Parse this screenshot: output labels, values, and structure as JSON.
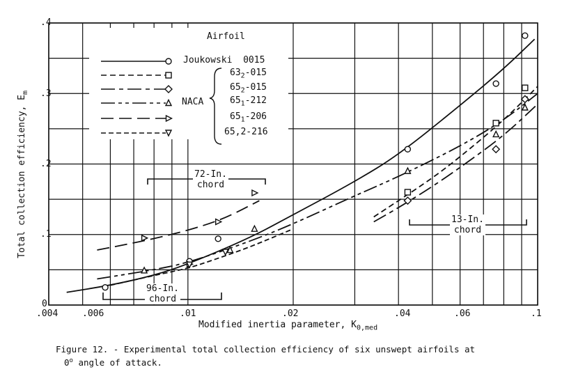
{
  "chart_data": {
    "type": "line",
    "title": "",
    "xlabel": "Modified inertia parameter, K0,med",
    "ylabel": "Total collection efficiency, Em",
    "x_scale": "log",
    "xlim": [
      0.004,
      0.1
    ],
    "ylim": [
      0,
      0.4
    ],
    "x_ticks": [
      ".004",
      ".006",
      ".01",
      ".02",
      ".04",
      ".06",
      ".1"
    ],
    "y_ticks": [
      "0",
      ".1",
      ".2",
      ".3",
      ".4"
    ],
    "grid": true,
    "legend": {
      "title": "Airfoil",
      "position": "upper-left",
      "group_label": "NACA",
      "entries": [
        {
          "name": "Joukowski 0015",
          "marker": "circle",
          "line": "solid"
        },
        {
          "name": "63₂-015",
          "marker": "square",
          "line": "dashed"
        },
        {
          "name": "65₂-015",
          "marker": "diamond",
          "line": "long-short-dash"
        },
        {
          "name": "65₁-212",
          "marker": "triangle-up",
          "line": "long-short-short-dash"
        },
        {
          "name": "65₁-206",
          "marker": "triangle-right",
          "line": "long-dash"
        },
        {
          "name": "65,2-216",
          "marker": "triangle-down",
          "line": "short-dash"
        }
      ]
    },
    "annotations": [
      "72-In. chord",
      "96-In. chord",
      "13-In. chord"
    ],
    "series": [
      {
        "name": "Joukowski 0015",
        "marker": "circle",
        "points": [
          [
            0.0058,
            0.025
          ],
          [
            0.0101,
            0.062
          ],
          [
            0.0122,
            0.094
          ],
          [
            0.0425,
            0.221
          ],
          [
            0.076,
            0.314
          ],
          [
            0.092,
            0.382
          ]
        ],
        "curve": [
          [
            0.0045,
            0.018
          ],
          [
            0.006,
            0.028
          ],
          [
            0.008,
            0.042
          ],
          [
            0.01,
            0.058
          ],
          [
            0.015,
            0.095
          ],
          [
            0.02,
            0.128
          ],
          [
            0.03,
            0.175
          ],
          [
            0.04,
            0.213
          ],
          [
            0.06,
            0.283
          ],
          [
            0.08,
            0.335
          ],
          [
            0.098,
            0.377
          ]
        ]
      },
      {
        "name": "63₂-015",
        "marker": "square",
        "points": [
          [
            0.0425,
            0.16
          ],
          [
            0.076,
            0.258
          ],
          [
            0.092,
            0.308
          ]
        ],
        "curve": [
          [
            0.034,
            0.125
          ],
          [
            0.04,
            0.148
          ],
          [
            0.05,
            0.18
          ],
          [
            0.06,
            0.21
          ],
          [
            0.08,
            0.262
          ],
          [
            0.1,
            0.31
          ]
        ]
      },
      {
        "name": "65₂-015",
        "marker": "diamond",
        "points": [
          [
            0.0425,
            0.148
          ],
          [
            0.076,
            0.221
          ],
          [
            0.092,
            0.292
          ]
        ],
        "curve": [
          [
            0.034,
            0.118
          ],
          [
            0.04,
            0.138
          ],
          [
            0.05,
            0.168
          ],
          [
            0.06,
            0.195
          ],
          [
            0.08,
            0.24
          ],
          [
            0.1,
            0.285
          ]
        ]
      },
      {
        "name": "65₁-212",
        "marker": "triangle-up",
        "points": [
          [
            0.0075,
            0.049
          ],
          [
            0.0132,
            0.078
          ],
          [
            0.0155,
            0.108
          ],
          [
            0.0425,
            0.19
          ],
          [
            0.076,
            0.242
          ],
          [
            0.092,
            0.28
          ]
        ],
        "curve": [
          [
            0.0055,
            0.037
          ],
          [
            0.008,
            0.05
          ],
          [
            0.01,
            0.06
          ],
          [
            0.015,
            0.09
          ],
          [
            0.02,
            0.115
          ],
          [
            0.03,
            0.155
          ],
          [
            0.04,
            0.182
          ],
          [
            0.06,
            0.225
          ],
          [
            0.08,
            0.262
          ],
          [
            0.1,
            0.3
          ]
        ]
      },
      {
        "name": "65₁-206",
        "marker": "triangle-right",
        "points": [
          [
            0.0075,
            0.095
          ],
          [
            0.0122,
            0.118
          ],
          [
            0.0155,
            0.159
          ],
          [
            0.0101,
            0.058
          ]
        ],
        "curve": [
          [
            0.0055,
            0.078
          ],
          [
            0.007,
            0.088
          ],
          [
            0.009,
            0.1
          ],
          [
            0.011,
            0.112
          ],
          [
            0.013,
            0.125
          ],
          [
            0.016,
            0.148
          ]
        ]
      },
      {
        "name": "65,2-216",
        "marker": "triangle-down",
        "points": [
          [
            0.0101,
            0.057
          ],
          [
            0.0128,
            0.075
          ]
        ],
        "curve": [
          [
            0.006,
            0.028
          ],
          [
            0.008,
            0.042
          ],
          [
            0.01,
            0.052
          ],
          [
            0.012,
            0.065
          ],
          [
            0.015,
            0.082
          ],
          [
            0.02,
            0.108
          ]
        ]
      }
    ]
  },
  "axes": {
    "x_tick_labels": [
      ".004",
      ".006",
      ".01",
      ".02",
      ".04",
      ".06",
      ".1"
    ],
    "y_tick_labels": [
      "0",
      ".1",
      ".2",
      ".3",
      ".4"
    ],
    "x_label": "Modified inertia parameter, K",
    "x_label_sub": "0,med",
    "y_label": "Total collection efficiency, E",
    "y_label_sub": "m"
  },
  "legend": {
    "title": "Airfoil",
    "naca": "NACA",
    "items": [
      {
        "base": "Joukowski  0015",
        "sub": "",
        "rest": ""
      },
      {
        "base": "63",
        "sub": "2",
        "rest": "-015"
      },
      {
        "base": "65",
        "sub": "2",
        "rest": "-015"
      },
      {
        "base": "65",
        "sub": "1",
        "rest": "-212"
      },
      {
        "base": "65",
        "sub": "1",
        "rest": "-206"
      },
      {
        "base": "65,2-216",
        "sub": "",
        "rest": ""
      }
    ]
  },
  "annotations": {
    "chord72": {
      "line1": "72-In.",
      "line2": "chord"
    },
    "chord96": {
      "line1": "96-In.",
      "line2": "chord"
    },
    "chord13": {
      "line1": "13-In.",
      "line2": "chord"
    }
  },
  "caption": {
    "line1": "Figure 12. - Experimental total collection efficiency of six unswept airfoils at",
    "line2_deg": "0",
    "line2_sup": "o",
    "line2_rest": " angle of attack."
  }
}
